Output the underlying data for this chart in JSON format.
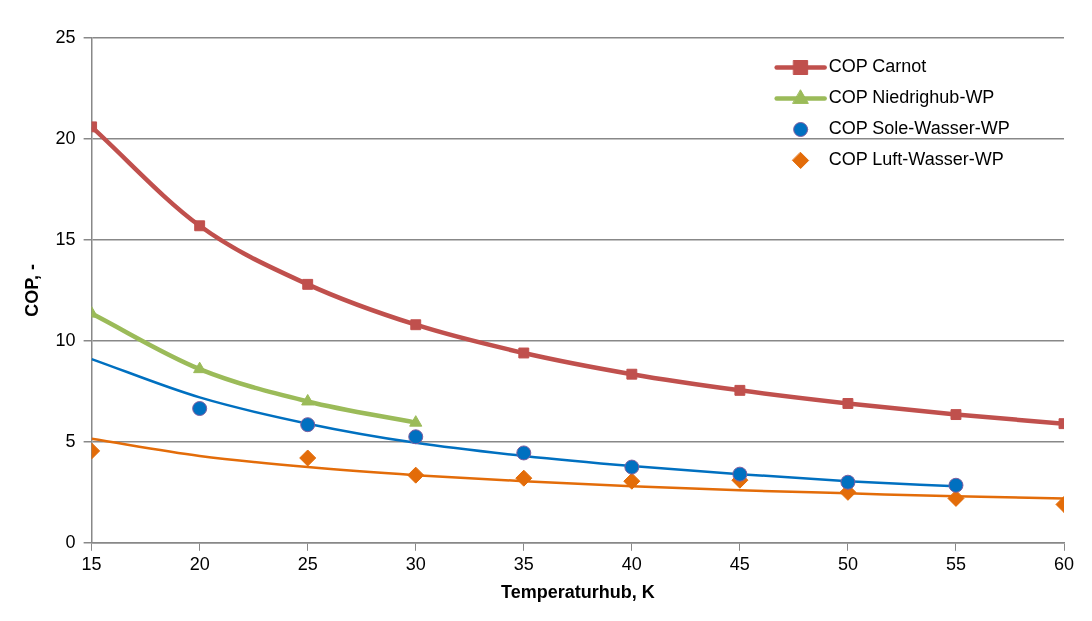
{
  "chart_data": {
    "type": "line",
    "xlabel": "Temperaturhub, K",
    "ylabel": "COP, -",
    "x": [
      15,
      20,
      25,
      30,
      35,
      40,
      45,
      50,
      55,
      60
    ],
    "series": [
      {
        "name": "COP Carnot",
        "marker": "square",
        "color": "#c0504d",
        "values": [
          20.6,
          15.7,
          12.8,
          10.8,
          9.4,
          8.35,
          7.55,
          6.9,
          6.35,
          5.9
        ]
      },
      {
        "name": "COP Niedrighub-WP",
        "marker": "triangle",
        "color": "#9bbb59",
        "x": [
          15,
          20,
          25,
          30
        ],
        "values": [
          11.35,
          8.6,
          7.0,
          5.95
        ]
      },
      {
        "name": "COP Sole-Wasser-WP",
        "type": "scatter",
        "marker": "circle",
        "color": "#0070c0",
        "x": [
          20,
          25,
          30,
          35,
          40,
          45,
          50,
          55
        ],
        "values": [
          6.65,
          5.85,
          5.25,
          4.45,
          3.75,
          3.4,
          3.0,
          2.85
        ]
      },
      {
        "name": "COP Luft-Wasser-WP",
        "type": "scatter",
        "marker": "diamond",
        "color": "#e36c09",
        "x": [
          15,
          25,
          30,
          35,
          40,
          45,
          50,
          55,
          60
        ],
        "values": [
          4.55,
          4.2,
          3.35,
          3.2,
          3.05,
          3.1,
          2.5,
          2.2,
          1.9
        ]
      },
      {
        "marker": "none",
        "color": "#0070c0",
        "x": [
          15,
          20,
          25,
          30,
          35,
          40,
          45,
          50,
          55
        ],
        "values": [
          9.1,
          7.2,
          5.9,
          4.95,
          4.3,
          3.8,
          3.4,
          3.05,
          2.8
        ]
      },
      {
        "marker": "none",
        "color": "#e36c09",
        "x": [
          15,
          20,
          25,
          30,
          35,
          40,
          45,
          50,
          55,
          60
        ],
        "values": [
          5.15,
          4.3,
          3.75,
          3.35,
          3.05,
          2.8,
          2.6,
          2.45,
          2.3,
          2.2
        ]
      }
    ],
    "xlim": [
      15,
      60
    ],
    "xticks": [
      15,
      20,
      25,
      30,
      35,
      40,
      45,
      50,
      55,
      60
    ],
    "ylim": [
      0,
      25
    ],
    "yticks": [
      0,
      5,
      10,
      15,
      20,
      25
    ],
    "grid": "y",
    "legend": "top right"
  }
}
